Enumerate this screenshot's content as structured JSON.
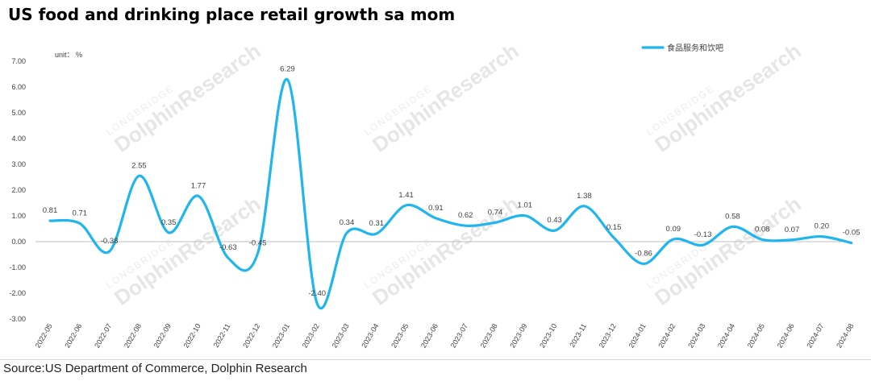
{
  "title": "US food and drinking place retail growth sa mom",
  "source": "Source:US Department of Commerce, Dolphin Research",
  "unit_label": "unit： %",
  "watermark": {
    "brand": "LONGBRIDGE",
    "name": "DolphinResearch"
  },
  "colors": {
    "line": "#1fb5ef",
    "axis": "#bfbfbf",
    "text": "#404040"
  },
  "chart_data": {
    "type": "line",
    "title": "US food and drinking place retail growth sa mom",
    "ylabel": "unit： %",
    "ylim": [
      -3,
      7
    ],
    "yticks": [
      "7.00",
      "6.00",
      "5.00",
      "4.00",
      "3.00",
      "2.00",
      "1.00",
      "0.00",
      "-1.00",
      "-2.00",
      "-3.00"
    ],
    "grid": false,
    "legend_position": "top-right",
    "categories": [
      "2022-05",
      "2022-06",
      "2022-07",
      "2022-08",
      "2022-09",
      "2022-10",
      "2022-11",
      "2022-12",
      "2023-01",
      "2023-02",
      "2023-03",
      "2023-04",
      "2023-05",
      "2023-06",
      "2023-07",
      "2023-08",
      "2023-09",
      "2023-10",
      "2023-11",
      "2023-12",
      "2024-01",
      "2024-02",
      "2024-03",
      "2024-04",
      "2024-05",
      "2024-06",
      "2024-07",
      "2024-08"
    ],
    "series": [
      {
        "name": "食品服务和饮吧",
        "values": [
          0.81,
          0.71,
          -0.38,
          2.55,
          0.35,
          1.77,
          -0.63,
          -0.45,
          6.29,
          -2.4,
          0.34,
          0.31,
          1.41,
          0.91,
          0.62,
          0.74,
          1.01,
          0.43,
          1.38,
          0.15,
          -0.86,
          0.09,
          -0.13,
          0.58,
          0.08,
          0.07,
          0.2,
          -0.05
        ],
        "labels": [
          "0.81",
          "0.71",
          "-0.38",
          "2.55",
          "0.35",
          "1.77",
          "-0.63",
          "-0.45",
          "6.29",
          "-2.40",
          "0.34",
          "0.31",
          "1.41",
          "0.91",
          "0.62",
          "0.74",
          "1.01",
          "0.43",
          "1.38",
          "0.15",
          "-0.86",
          "0.09",
          "-0.13",
          "0.58",
          "0.08",
          "0.07",
          "0.20",
          "-0.05"
        ]
      }
    ]
  }
}
